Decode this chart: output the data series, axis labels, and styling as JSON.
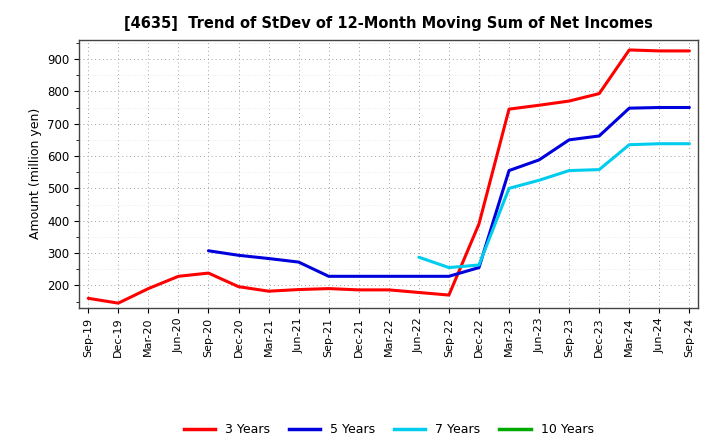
{
  "title": "[4635]  Trend of StDev of 12-Month Moving Sum of Net Incomes",
  "ylabel": "Amount (million yen)",
  "ylim": [
    130,
    960
  ],
  "yticks": [
    200,
    300,
    400,
    500,
    600,
    700,
    800,
    900
  ],
  "background_color": "#ffffff",
  "grid_color": "#999999",
  "x_labels": [
    "Sep-19",
    "Dec-19",
    "Mar-20",
    "Jun-20",
    "Sep-20",
    "Dec-20",
    "Mar-21",
    "Jun-21",
    "Sep-21",
    "Dec-21",
    "Mar-22",
    "Jun-22",
    "Sep-22",
    "Dec-22",
    "Mar-23",
    "Jun-23",
    "Sep-23",
    "Dec-23",
    "Mar-24",
    "Jun-24",
    "Sep-24"
  ],
  "series": {
    "3 Years": {
      "color": "#ff0000",
      "data": [
        160,
        145,
        190,
        228,
        238,
        196,
        182,
        187,
        190,
        186,
        186,
        178,
        170,
        390,
        745,
        757,
        770,
        793,
        928,
        925,
        925
      ]
    },
    "5 Years": {
      "color": "#0000dd",
      "data": [
        null,
        null,
        null,
        null,
        307,
        293,
        283,
        272,
        228,
        228,
        228,
        228,
        228,
        255,
        555,
        588,
        650,
        662,
        748,
        750,
        750
      ]
    },
    "7 Years": {
      "color": "#00ccee",
      "data": [
        null,
        null,
        null,
        null,
        null,
        null,
        null,
        null,
        null,
        null,
        null,
        287,
        255,
        263,
        500,
        525,
        555,
        558,
        635,
        638,
        638
      ]
    },
    "10 Years": {
      "color": "#00aa00",
      "data": [
        null,
        null,
        null,
        null,
        null,
        null,
        null,
        null,
        null,
        null,
        null,
        null,
        null,
        null,
        null,
        null,
        null,
        null,
        null,
        null,
        null
      ]
    }
  }
}
